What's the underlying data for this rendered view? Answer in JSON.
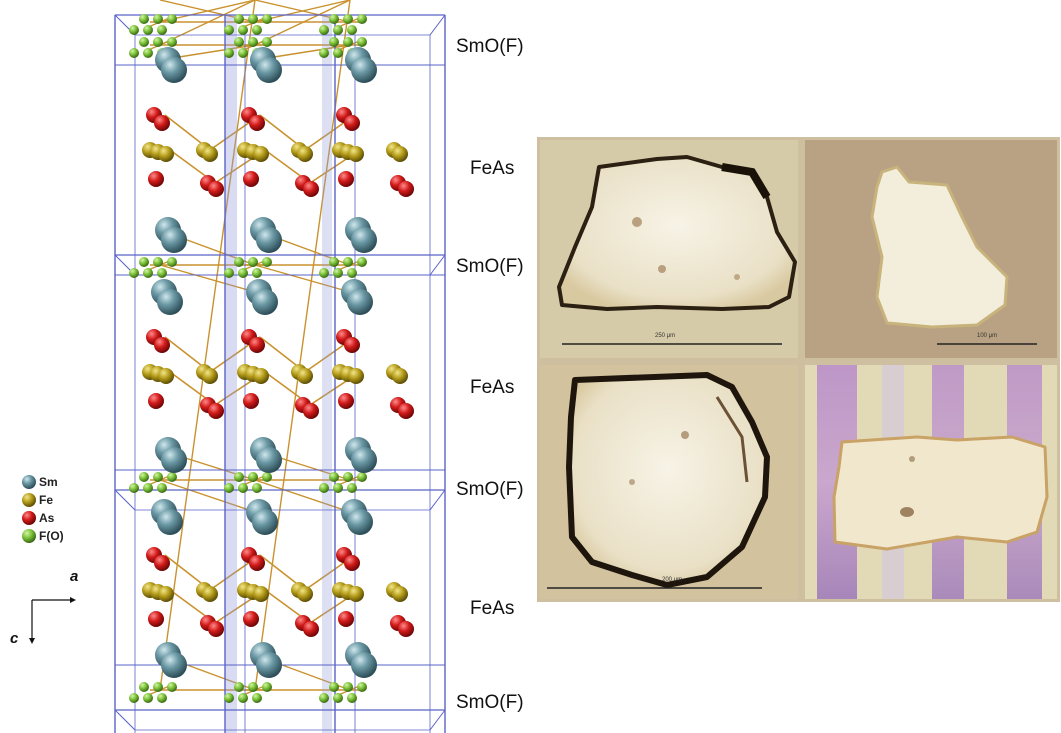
{
  "layer_labels": [
    "SmO(F)",
    "FeAs",
    "SmO(F)",
    "FeAs",
    "SmO(F)",
    "FeAs",
    "SmO(F)"
  ],
  "legend": [
    {
      "label": "Sm",
      "color": "#5f8d99",
      "icon": "sm-atom-icon"
    },
    {
      "label": "Fe",
      "color": "#b9a21e",
      "icon": "fe-atom-icon"
    },
    {
      "label": "As",
      "color": "#d11a1a",
      "icon": "as-atom-icon"
    },
    {
      "label": "F(O)",
      "color": "#7cc23a",
      "icon": "f-atom-icon"
    }
  ],
  "axes": {
    "a": "a",
    "c": "c"
  },
  "photos": [
    {
      "scale_text": "250 μm"
    },
    {
      "scale_text": "100 μm"
    },
    {
      "scale_text": "200 μm"
    },
    {
      "scale_text": ""
    }
  ]
}
